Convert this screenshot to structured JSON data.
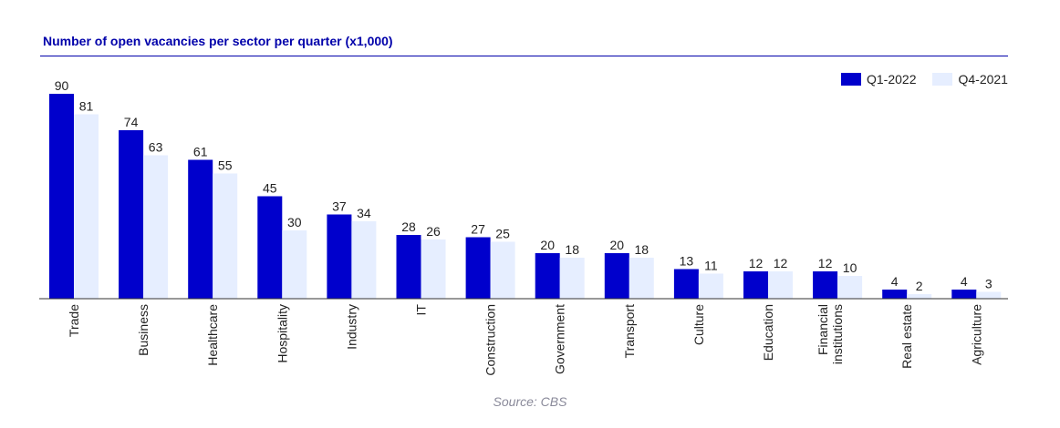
{
  "chart_data": {
    "type": "bar",
    "title": "Number of open vacancies per sector per quarter (x1,000)",
    "source": "Source: CBS",
    "categories": [
      "Trade",
      "Business",
      "Healthcare",
      "Hospitality",
      "Industry",
      "IT",
      "Construction",
      "Government",
      "Transport",
      "Culture",
      "Education",
      "Financial institutions",
      "Real estate",
      "Agriculture"
    ],
    "category_lines": [
      [
        "Trade"
      ],
      [
        "Business"
      ],
      [
        "Healthcare"
      ],
      [
        "Hospitality"
      ],
      [
        "Industry"
      ],
      [
        "IT"
      ],
      [
        "Construction"
      ],
      [
        "Government"
      ],
      [
        "Transport"
      ],
      [
        "Culture"
      ],
      [
        "Education"
      ],
      [
        "Financial",
        "institutions"
      ],
      [
        "Real estate"
      ],
      [
        "Agriculture"
      ]
    ],
    "series": [
      {
        "name": "Q1-2022",
        "color": "#0000cc",
        "values": [
          90,
          74,
          61,
          45,
          37,
          28,
          27,
          20,
          20,
          13,
          12,
          12,
          4,
          4
        ]
      },
      {
        "name": "Q4-2021",
        "color": "#e6eeff",
        "values": [
          81,
          63,
          55,
          30,
          34,
          26,
          25,
          18,
          18,
          11,
          12,
          10,
          2,
          3
        ]
      }
    ],
    "ylim": [
      0,
      90
    ],
    "grid": false,
    "legend_position": "top-right",
    "data_labels": true,
    "xlabel": "",
    "ylabel": ""
  }
}
